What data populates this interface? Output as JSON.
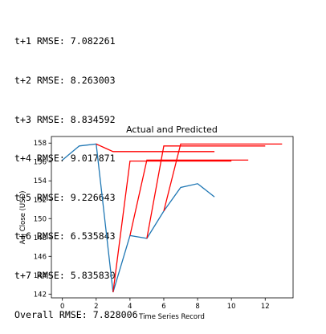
{
  "output_lines": [
    "t+1 RMSE: 7.082261",
    "t+2 RMSE: 8.263003",
    "t+3 RMSE: 8.834592",
    "t+4 RMSE: 9.017871",
    "t+5 RMSE: 9.226643",
    "t+6 RMSE: 6.535843",
    "t+7 RMSE: 5.835830",
    "Overall RMSE: 7.828006"
  ],
  "chart_data": {
    "type": "line",
    "title": "Actual and Predicted",
    "xlabel": "Time Series Record",
    "ylabel": "Adj Close (USD)",
    "xlim": [
      -0.65,
      13.65
    ],
    "ylim": [
      141.6,
      158.7
    ],
    "xticks": [
      0,
      2,
      4,
      6,
      8,
      10,
      12
    ],
    "yticks": [
      142,
      144,
      146,
      148,
      150,
      152,
      154,
      156,
      158
    ],
    "grid": false,
    "series": [
      {
        "role": "actual",
        "color": "#1f77b4",
        "x": [
          0,
          1,
          2,
          3,
          4,
          5,
          6,
          7,
          8,
          9
        ],
        "y": [
          156.2,
          157.7,
          157.9,
          142.2,
          148.2,
          147.9,
          150.8,
          153.3,
          153.7,
          152.3
        ]
      },
      {
        "role": "predicted",
        "color": "#ff0000",
        "x": [
          2,
          3,
          4,
          5,
          6,
          7,
          8,
          9
        ],
        "y": [
          157.9,
          157.1,
          157.1,
          157.1,
          157.1,
          157.1,
          157.1,
          157.1
        ]
      },
      {
        "role": "predicted",
        "color": "#ff0000",
        "x": [
          3,
          4,
          5,
          6,
          7,
          8,
          9,
          10
        ],
        "y": [
          142.2,
          156.1,
          156.1,
          156.1,
          156.1,
          156.1,
          156.1,
          156.1
        ]
      },
      {
        "role": "predicted",
        "color": "#ff0000",
        "x": [
          4,
          5,
          6,
          7,
          8,
          9,
          10,
          11
        ],
        "y": [
          148.2,
          156.2,
          156.2,
          156.2,
          156.2,
          156.2,
          156.2,
          156.2
        ]
      },
      {
        "role": "predicted",
        "color": "#ff0000",
        "x": [
          5,
          6,
          7,
          8,
          9,
          10,
          11,
          12
        ],
        "y": [
          147.9,
          157.7,
          157.7,
          157.7,
          157.7,
          157.7,
          157.7,
          157.7
        ]
      },
      {
        "role": "predicted",
        "color": "#ff0000",
        "x": [
          6,
          7,
          8,
          9,
          10,
          11,
          12,
          13
        ],
        "y": [
          150.8,
          157.9,
          157.9,
          157.9,
          157.9,
          157.9,
          157.9,
          157.9
        ]
      }
    ]
  }
}
